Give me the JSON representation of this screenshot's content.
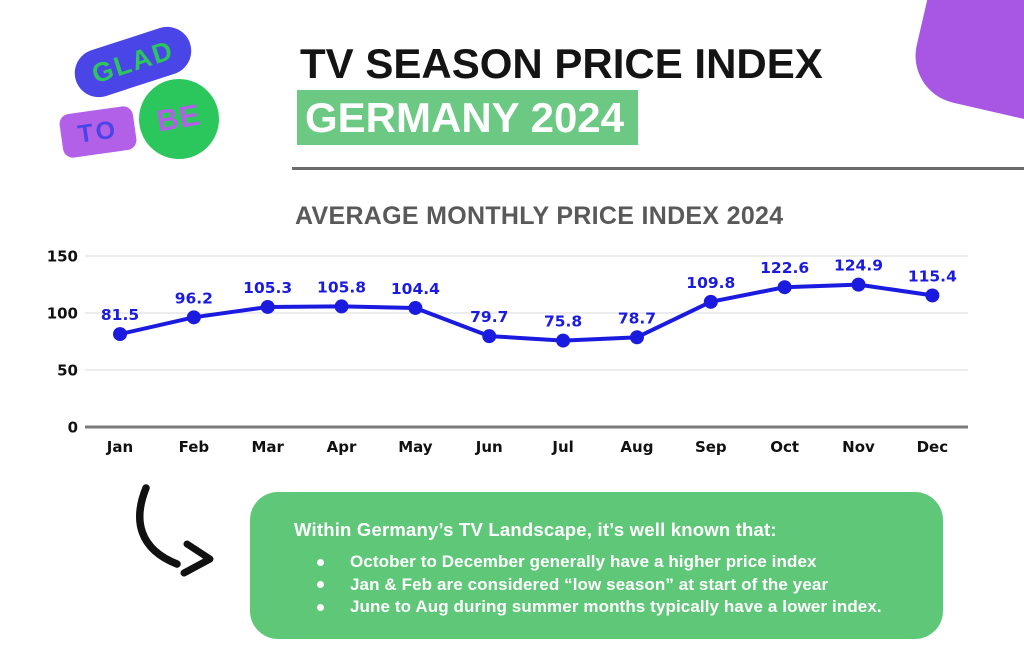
{
  "page": {
    "title_line1": "TV SEASON PRICE INDEX",
    "title_line2": "GERMANY 2024"
  },
  "logo": {
    "word1": "GLAD",
    "word2": "TO",
    "word3": "BE"
  },
  "chart_data": {
    "type": "line",
    "title": "AVERAGE MONTHLY PRICE INDEX 2024",
    "categories": [
      "Jan",
      "Feb",
      "Mar",
      "Apr",
      "May",
      "Jun",
      "Jul",
      "Aug",
      "Sep",
      "Oct",
      "Nov",
      "Dec"
    ],
    "values": [
      81.5,
      96.2,
      105.3,
      105.8,
      104.4,
      79.7,
      75.8,
      78.7,
      109.8,
      122.6,
      124.9,
      115.4
    ],
    "yticks": [
      0,
      50,
      100,
      150
    ],
    "ylim": [
      0,
      150
    ],
    "grid": true,
    "legend": "none",
    "line_color": "#1b1be0",
    "label_color": "#1b1be0",
    "gridline_color": "#d9d9d9",
    "baseline_color": "#7a7a7a"
  },
  "insights": {
    "heading": "Within Germany’s TV Landscape, it’s well known that:",
    "bullets": [
      "October to December generally have a higher price index",
      "Jan & Feb are considered “low season” at start of the year",
      "June to Aug during summer months typically have a lower index."
    ]
  },
  "colors": {
    "highlight_green": "#6cc983",
    "box_green": "#5ec878",
    "logo_blue": "#4a45e6",
    "logo_green": "#2cc75c",
    "logo_purple": "#b260e8",
    "blob_purple": "#a757e4",
    "arrow_black": "#111111"
  }
}
